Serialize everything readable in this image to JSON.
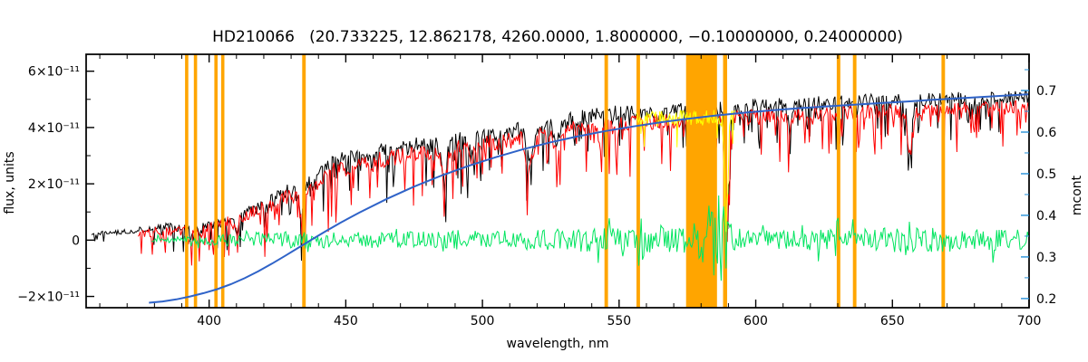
{
  "chart_data": {
    "type": "line",
    "title": "HD210066   (20.733225, 12.862178, 4260.0000, 1.8000000, −0.10000000, 0.24000000)",
    "xlabel": "wavelength, nm",
    "ylabel_left": "flux, units",
    "ylabel_right": "mcont",
    "x_range": [
      355,
      700
    ],
    "x_major_ticks": [
      400,
      450,
      500,
      550,
      600,
      650,
      700
    ],
    "x_minor_step": 10,
    "y_left_range_1e11": [
      -2.4,
      6.6
    ],
    "y_left_ticks": [
      {
        "value": -2,
        "label": "−2×10⁻¹¹"
      },
      {
        "value": 0,
        "label": "0"
      },
      {
        "value": 2,
        "label": "2×10⁻¹¹"
      },
      {
        "value": 4,
        "label": "4×10⁻¹¹"
      },
      {
        "value": 6,
        "label": "6×10⁻¹¹"
      }
    ],
    "y_left_minor_step": 1,
    "y_right_range": [
      0.178,
      0.787
    ],
    "y_right_ticks": [
      {
        "value": 0.2,
        "label": "0.2"
      },
      {
        "value": 0.3,
        "label": "0.3"
      },
      {
        "value": 0.4,
        "label": "0.4"
      },
      {
        "value": 0.5,
        "label": "0.5"
      },
      {
        "value": 0.6,
        "label": "0.6"
      },
      {
        "value": 0.7,
        "label": "0.7"
      }
    ],
    "y_right_minor_step": 0.05,
    "grid": false,
    "legend": null,
    "colors": {
      "observed": "#000000",
      "model": "#ff0000",
      "residual": "#00e55f",
      "continuum": "#2f63c8",
      "mask": "#ffa500",
      "masked_model": "#ffff00",
      "right_axis": "#2590d8",
      "frame": "#000000"
    },
    "series": [
      {
        "name": "observed-spectrum",
        "color_key": "observed",
        "layer": 1,
        "seed": 101,
        "wl_start": 357,
        "wl_end": 700,
        "step": 0.4,
        "width": 1,
        "deep_spike_prob": 0.18,
        "deep_spike_mult": 2.8,
        "envelope": [
          [
            357,
            0.25,
            0.12
          ],
          [
            368,
            0.3,
            0.15
          ],
          [
            378,
            0.45,
            0.25
          ],
          [
            386,
            0.5,
            0.3
          ],
          [
            394,
            0.5,
            0.32
          ],
          [
            402,
            0.6,
            0.35
          ],
          [
            410,
            0.85,
            0.45
          ],
          [
            418,
            1.2,
            0.5
          ],
          [
            426,
            1.6,
            0.55
          ],
          [
            434,
            2.1,
            0.6
          ],
          [
            442,
            2.7,
            0.65
          ],
          [
            450,
            2.95,
            0.6
          ],
          [
            460,
            3.15,
            0.6
          ],
          [
            472,
            3.35,
            0.65
          ],
          [
            484,
            3.5,
            0.65
          ],
          [
            496,
            3.65,
            0.65
          ],
          [
            508,
            3.85,
            0.6
          ],
          [
            520,
            4.1,
            0.6
          ],
          [
            532,
            4.35,
            0.6
          ],
          [
            544,
            4.55,
            0.55
          ],
          [
            556,
            4.6,
            0.55
          ],
          [
            568,
            4.65,
            0.55
          ],
          [
            580,
            4.7,
            0.55
          ],
          [
            592,
            4.75,
            0.55
          ],
          [
            604,
            4.85,
            0.55
          ],
          [
            616,
            4.9,
            0.55
          ],
          [
            628,
            4.95,
            0.55
          ],
          [
            640,
            5.0,
            0.5
          ],
          [
            652,
            5.0,
            0.5
          ],
          [
            664,
            5.05,
            0.5
          ],
          [
            676,
            5.1,
            0.45
          ],
          [
            688,
            5.1,
            0.45
          ],
          [
            700,
            5.15,
            0.45
          ]
        ],
        "absorption_lines": [
          [
            393.4,
            0.35,
            0.8
          ],
          [
            396.8,
            0.3,
            0.8
          ],
          [
            410.2,
            0.5,
            0.8
          ],
          [
            434.0,
            1.3,
            1.2
          ],
          [
            438.3,
            0.6,
            1.0
          ],
          [
            486.1,
            1.7,
            1.2
          ],
          [
            495.8,
            0.7,
            1.0
          ],
          [
            517.3,
            1.5,
            1.8
          ],
          [
            527.0,
            1.1,
            1.2
          ],
          [
            589.4,
            5.9,
            1.0
          ],
          [
            612.2,
            0.8,
            1.0
          ],
          [
            656.3,
            2.2,
            1.2
          ]
        ]
      },
      {
        "name": "model-spectrum",
        "color_key": "model",
        "layer": 1,
        "seed": 202,
        "wl_start": 374,
        "wl_end": 700,
        "step": 0.4,
        "width": 1,
        "deep_spike_prob": 0.22,
        "deep_spike_mult": 3.2,
        "envelope": [
          [
            374,
            0.28,
            0.3
          ],
          [
            385,
            0.35,
            0.35
          ],
          [
            395,
            0.42,
            0.38
          ],
          [
            405,
            0.6,
            0.42
          ],
          [
            415,
            1.0,
            0.5
          ],
          [
            425,
            1.45,
            0.55
          ],
          [
            435,
            1.95,
            0.6
          ],
          [
            445,
            2.5,
            0.6
          ],
          [
            455,
            2.8,
            0.6
          ],
          [
            470,
            3.05,
            0.6
          ],
          [
            485,
            3.25,
            0.6
          ],
          [
            500,
            3.45,
            0.6
          ],
          [
            515,
            3.75,
            0.6
          ],
          [
            530,
            4.0,
            0.55
          ],
          [
            545,
            4.2,
            0.55
          ],
          [
            560,
            4.25,
            0.55
          ],
          [
            575,
            4.3,
            0.55
          ],
          [
            590,
            4.35,
            0.55
          ],
          [
            605,
            4.5,
            0.55
          ],
          [
            620,
            4.55,
            0.55
          ],
          [
            635,
            4.6,
            0.5
          ],
          [
            650,
            4.65,
            0.5
          ],
          [
            665,
            4.7,
            0.5
          ],
          [
            680,
            4.75,
            0.45
          ],
          [
            700,
            4.8,
            0.45
          ]
        ],
        "absorption_lines": [
          [
            393.4,
            0.3,
            0.8
          ],
          [
            396.8,
            0.28,
            0.8
          ],
          [
            410.2,
            0.45,
            0.8
          ],
          [
            434.0,
            1.1,
            1.2
          ],
          [
            438.3,
            0.55,
            1.0
          ],
          [
            486.1,
            1.5,
            1.2
          ],
          [
            495.8,
            0.65,
            1.0
          ],
          [
            517.3,
            1.4,
            1.8
          ],
          [
            527.0,
            1.0,
            1.2
          ],
          [
            589.4,
            4.6,
            1.0
          ],
          [
            612.2,
            0.7,
            1.0
          ],
          [
            656.3,
            1.9,
            1.2
          ]
        ]
      },
      {
        "name": "masked-model-segment",
        "color_key": "masked_model",
        "layer": 3,
        "seed": 303,
        "wl_start": 556.5,
        "wl_end": 592.5,
        "step": 0.3,
        "width": 1,
        "deep_spike_prob": 0.12,
        "deep_spike_mult": 2.5,
        "envelope": [
          [
            556.5,
            4.35,
            0.55
          ],
          [
            575,
            4.4,
            0.55
          ],
          [
            592.5,
            4.45,
            0.55
          ]
        ],
        "absorption_lines": [
          [
            589.2,
            4.0,
            0.9
          ]
        ]
      },
      {
        "name": "residual-spectrum",
        "color_key": "residual",
        "layer": 3,
        "kind": "residual",
        "seed": 404,
        "wl_start": 379,
        "wl_end": 700,
        "step": 0.45,
        "width": 1,
        "envelope": [
          [
            379,
            0,
            0.08
          ],
          [
            392,
            0,
            0.14
          ],
          [
            405,
            0,
            0.2
          ],
          [
            418,
            0,
            0.28
          ],
          [
            432,
            0,
            0.33
          ],
          [
            446,
            0,
            0.3
          ],
          [
            460,
            0,
            0.28
          ],
          [
            474,
            0,
            0.3
          ],
          [
            488,
            0,
            0.32
          ],
          [
            502,
            0,
            0.33
          ],
          [
            516,
            0,
            0.36
          ],
          [
            530,
            0,
            0.4
          ],
          [
            544,
            0,
            0.42
          ],
          [
            558,
            0,
            0.45
          ],
          [
            572,
            0,
            0.46
          ],
          [
            586,
            0,
            0.5
          ],
          [
            600,
            0,
            0.34
          ],
          [
            614,
            0,
            0.36
          ],
          [
            628,
            0,
            0.4
          ],
          [
            642,
            0,
            0.42
          ],
          [
            656,
            0,
            0.45
          ],
          [
            670,
            0,
            0.42
          ],
          [
            684,
            0,
            0.4
          ],
          [
            700,
            0,
            0.36
          ]
        ],
        "spike_regions": [
          {
            "wl": 546.1,
            "w": 1.0,
            "mult": 2.2
          },
          {
            "wl": 557.7,
            "w": 1.2,
            "mult": 2.6
          },
          {
            "wl": 585.5,
            "w": 4.5,
            "mult": 3.8
          },
          {
            "wl": 630.0,
            "w": 1.0,
            "mult": 2.0
          },
          {
            "wl": 655.5,
            "w": 1.5,
            "mult": 1.8
          }
        ]
      }
    ],
    "continuum": {
      "name": "continuum-mcont-curve",
      "color_key": "continuum",
      "axis": "right",
      "width": 2,
      "points": [
        [
          378,
          0.19
        ],
        [
          383,
          0.193
        ],
        [
          388,
          0.198
        ],
        [
          393,
          0.205
        ],
        [
          398,
          0.213
        ],
        [
          403,
          0.2225
        ],
        [
          408,
          0.2345
        ],
        [
          413,
          0.249
        ],
        [
          418,
          0.2655
        ],
        [
          423,
          0.284
        ],
        [
          428,
          0.3035
        ],
        [
          433,
          0.3235
        ],
        [
          438,
          0.3435
        ],
        [
          443,
          0.363
        ],
        [
          448,
          0.382
        ],
        [
          455,
          0.4065
        ],
        [
          465,
          0.4395
        ],
        [
          475,
          0.469
        ],
        [
          485,
          0.4955
        ],
        [
          495,
          0.519
        ],
        [
          505,
          0.54
        ],
        [
          515,
          0.559
        ],
        [
          525,
          0.5755
        ],
        [
          535,
          0.59
        ],
        [
          545,
          0.6025
        ],
        [
          555,
          0.6135
        ],
        [
          565,
          0.6235
        ],
        [
          575,
          0.632
        ],
        [
          585,
          0.6395
        ],
        [
          595,
          0.646
        ],
        [
          605,
          0.652
        ],
        [
          615,
          0.657
        ],
        [
          625,
          0.6615
        ],
        [
          635,
          0.6655
        ],
        [
          645,
          0.6695
        ],
        [
          655,
          0.6735
        ],
        [
          665,
          0.6775
        ],
        [
          675,
          0.6815
        ],
        [
          685,
          0.6855
        ],
        [
          700,
          0.691
        ]
      ]
    },
    "masks": {
      "lines": [
        {
          "wl": 391.8,
          "w": 1.2
        },
        {
          "wl": 395.0,
          "w": 1.2
        },
        {
          "wl": 402.5,
          "w": 1.2
        },
        {
          "wl": 405.0,
          "w": 1.2
        },
        {
          "wl": 434.7,
          "w": 1.3
        },
        {
          "wl": 545.3,
          "w": 1.3
        },
        {
          "wl": 557.0,
          "w": 1.3
        },
        {
          "wl": 588.8,
          "w": 1.5
        },
        {
          "wl": 630.3,
          "w": 1.3
        },
        {
          "wl": 636.2,
          "w": 1.3
        },
        {
          "wl": 668.6,
          "w": 1.3
        }
      ],
      "bands": [
        {
          "wl0": 574.5,
          "wl1": 585.8
        }
      ]
    }
  }
}
